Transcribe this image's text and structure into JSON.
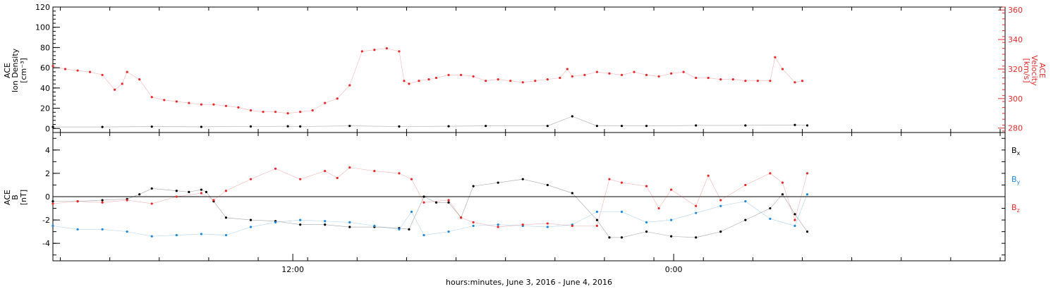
{
  "chart_data": [
    {
      "type": "scatter",
      "title": "",
      "ylabel_left": [
        "ACE",
        "Ion Density",
        "[cm⁻³]"
      ],
      "ylabel_right": [
        "ACE",
        "Velocity",
        "[km/s]"
      ],
      "ylim_left": [
        -4,
        120
      ],
      "yticks_left": [
        0,
        20,
        40,
        60,
        80,
        100,
        120
      ],
      "ylim_right": [
        277,
        362
      ],
      "yticks_right": [
        280,
        300,
        320,
        340,
        360
      ],
      "right_axis_color": "#e8292b",
      "series": [
        {
          "name": "",
          "axis": "left",
          "color": "#000000",
          "x": [
            0,
            2,
            4,
            6,
            8,
            9.5,
            10,
            12,
            14,
            16,
            17.5,
            20,
            21,
            22,
            23,
            24,
            26,
            28,
            30,
            30.5
          ],
          "y": [
            1.5,
            1.5,
            1.8,
            1.6,
            2,
            2.2,
            2,
            2.5,
            2,
            2.2,
            2.5,
            2.5,
            12,
            2.5,
            2.5,
            2.5,
            3,
            3,
            3.5,
            3
          ]
        },
        {
          "name": "",
          "axis": "right",
          "color": "#e8292b",
          "x": [
            0,
            0.5,
            1,
            1.5,
            2,
            2.5,
            2.8,
            3,
            3.5,
            4,
            4.5,
            5,
            5.5,
            6,
            6.5,
            7,
            7.5,
            8,
            8.5,
            9,
            9.5,
            10,
            10.5,
            11,
            11.5,
            12,
            12.5,
            13,
            13.5,
            14,
            14.2,
            14.4,
            14.8,
            15.2,
            15.5,
            16,
            16.5,
            17,
            17.5,
            18,
            18.5,
            19,
            19.5,
            20,
            20.5,
            20.8,
            21,
            21.5,
            22,
            22.5,
            23,
            23.5,
            24,
            24.5,
            25,
            25.5,
            26,
            26.5,
            27,
            27.5,
            28,
            28.5,
            29,
            29.2,
            29.5,
            30,
            30.3
          ],
          "y": [
            322,
            320,
            319,
            318,
            316,
            306,
            310,
            318,
            313,
            301,
            299,
            298,
            297,
            296,
            296,
            295,
            294,
            292,
            291,
            291,
            290,
            291,
            292,
            297,
            300,
            309,
            332,
            333,
            334,
            332,
            312,
            310,
            312,
            313,
            314,
            316,
            316,
            315,
            312,
            313,
            312,
            311,
            312,
            313,
            314,
            320,
            315,
            316,
            318,
            317,
            316,
            318,
            316,
            315,
            317,
            318,
            314,
            314,
            313,
            313,
            312,
            312,
            312,
            328,
            320,
            311,
            312
          ]
        }
      ]
    },
    {
      "type": "scatter",
      "title": "",
      "ylabel_left": [
        "ACE",
        "B",
        "[nT]"
      ],
      "ylim": [
        -5.5,
        5.5
      ],
      "yticks": [
        -4,
        -2,
        0,
        2,
        4
      ],
      "zero_line": true,
      "series": [
        {
          "name": "Bx",
          "color": "#000000",
          "x": [
            0,
            1,
            2,
            3,
            3.5,
            4,
            5,
            5.5,
            6,
            6.2,
            6.5,
            7,
            8,
            9,
            10,
            11,
            12,
            13,
            14,
            14.4,
            15,
            15.5,
            16,
            16.5,
            17,
            18,
            19,
            20,
            21,
            22,
            22.5,
            23,
            24,
            25,
            26,
            27,
            28,
            29,
            29.5,
            30,
            30.5
          ],
          "y": [
            -0.4,
            -0.4,
            -0.3,
            -0.2,
            0.2,
            0.7,
            0.5,
            0.4,
            0.6,
            0.4,
            -0.4,
            -1.8,
            -2.0,
            -2.1,
            -2.4,
            -2.4,
            -2.6,
            -2.6,
            -2.7,
            -2.8,
            0.0,
            -0.5,
            -0.5,
            -1.8,
            0.9,
            1.2,
            1.5,
            1.0,
            0.3,
            -2.0,
            -3.5,
            -3.5,
            -3.0,
            -3.4,
            -3.5,
            -3.0,
            -2.0,
            -1.0,
            0.2,
            -1.5,
            -3.0
          ]
        },
        {
          "name": "By",
          "color": "#1f88d8",
          "x": [
            0,
            1,
            2,
            3,
            4,
            5,
            6,
            7,
            8,
            9,
            10,
            11,
            12,
            13,
            14,
            14.5,
            15,
            16,
            17,
            18,
            19,
            20,
            21,
            22,
            23,
            24,
            25,
            26,
            27,
            28,
            29,
            30,
            30.5
          ],
          "y": [
            -2.5,
            -2.8,
            -2.8,
            -3.0,
            -3.4,
            -3.3,
            -3.2,
            -3.3,
            -2.6,
            -2.2,
            -2.0,
            -2.1,
            -2.2,
            -2.5,
            -2.8,
            -1.3,
            -3.3,
            -3.0,
            -2.5,
            -2.4,
            -2.5,
            -2.6,
            -2.4,
            -1.3,
            -1.3,
            -2.2,
            -2.0,
            -1.4,
            -0.8,
            -0.4,
            -1.9,
            -2.5,
            0.2
          ]
        },
        {
          "name": "Bz",
          "color": "#e8292b",
          "x": [
            0,
            1,
            2,
            3,
            4,
            5,
            6,
            6.5,
            7,
            8,
            9,
            10,
            11,
            11.5,
            12,
            13,
            14,
            14.5,
            15,
            16,
            16.5,
            17,
            18,
            19,
            20,
            21,
            22,
            22.5,
            23,
            24,
            24.5,
            25,
            26,
            26.5,
            27,
            28,
            29,
            29.5,
            30,
            30.5
          ],
          "y": [
            -0.6,
            -0.4,
            -0.5,
            -0.3,
            -0.6,
            0.0,
            0.3,
            -0.3,
            0.5,
            1.5,
            2.4,
            1.5,
            2.2,
            1.6,
            2.5,
            2.2,
            2.0,
            1.5,
            -0.5,
            -0.3,
            -1.8,
            -2.2,
            -2.6,
            -2.4,
            -2.3,
            -2.5,
            -2.5,
            1.5,
            1.2,
            0.9,
            -1.0,
            0.6,
            -0.8,
            1.8,
            -0.3,
            1.0,
            2.0,
            1.2,
            -2.0,
            2.0
          ]
        }
      ]
    }
  ],
  "x_axis": {
    "xlim": [
      0,
      38.5
    ],
    "xlabel": "hours:minutes, June  3, 2016 - June  4, 2016",
    "ticks": [
      {
        "x": 9.7,
        "label": "12:00"
      },
      {
        "x": 25.1,
        "label": "0:00"
      }
    ]
  },
  "legend": {
    "bx": "B",
    "bx_sub": "x",
    "by": "B",
    "by_sub": "y",
    "bz": "B",
    "bz_sub": "z"
  }
}
